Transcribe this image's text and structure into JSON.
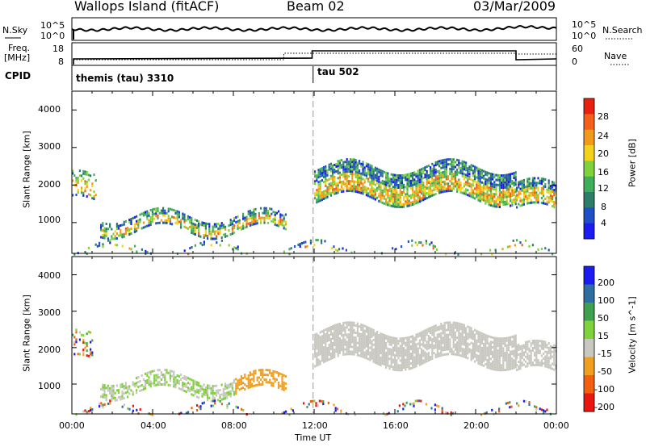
{
  "header": {
    "station": "Wallops Island (fitACF)",
    "beam": "Beam 02",
    "date": "03/Mar/2009"
  },
  "side_labels": {
    "nsky": "N.Sky",
    "freq_line1": "Freq.",
    "freq_line2": "[MHz]",
    "cpid": "CPID",
    "nsearch": "N.Search",
    "nave": "Nave"
  },
  "noise_panel": {
    "left_ticks": [
      "10^5",
      "10^0"
    ],
    "right_ticks": [
      "10^5",
      "10^0"
    ]
  },
  "freq_panel": {
    "left_ticks": [
      "18",
      "8"
    ],
    "right_ticks": [
      "60",
      "0"
    ]
  },
  "cpid_panel": {
    "segments": [
      {
        "label": "themis (tau) 3310",
        "start_hour": 0
      },
      {
        "label": "tau 502",
        "start_hour": 11.95
      }
    ]
  },
  "colors": {
    "power": [
      "#1c1cf0",
      "#1f50c8",
      "#2e7d6a",
      "#3fae5a",
      "#7fd23c",
      "#f2d21c",
      "#f29a1a",
      "#f2601a",
      "#e82010"
    ],
    "velocity": [
      "#e81810",
      "#f06010",
      "#f0a020",
      "#c8c8c0",
      "#7fd23c",
      "#3fa050",
      "#2e6ea0",
      "#1c1cf0"
    ]
  },
  "chart_data": [
    {
      "type": "heatmap",
      "name": "power",
      "title": "",
      "xlabel": "",
      "ylabel": "Slant Range [km]",
      "x_range_hours": [
        0,
        24
      ],
      "ylim": [
        180,
        4500
      ],
      "y_ticks": [
        "1000",
        "2000",
        "3000",
        "4000"
      ],
      "colorbar": {
        "label": "Power [dB]",
        "ticks": [
          "4",
          "8",
          "12",
          "16",
          "20",
          "24",
          "28"
        ],
        "range": [
          0,
          30
        ]
      },
      "regions": [
        {
          "t0": 0.0,
          "t1": 1.2,
          "r0": 1500,
          "r1": 2200,
          "density": 0.35
        },
        {
          "t0": 1.4,
          "t1": 10.6,
          "r0": 800,
          "r1": 1200,
          "density": 0.6
        },
        {
          "t0": 12.0,
          "t1": 22.0,
          "r0": 1600,
          "r1": 2500,
          "density": 0.8
        },
        {
          "t0": 22.0,
          "t1": 24.0,
          "r0": 1300,
          "r1": 2000,
          "density": 0.7
        },
        {
          "t0": 0.0,
          "t1": 24.0,
          "r0": 180,
          "r1": 350,
          "density": 0.25
        }
      ]
    },
    {
      "type": "heatmap",
      "name": "velocity",
      "title": "",
      "xlabel": "Time UT",
      "ylabel": "Slant Range [km]",
      "x_range_hours": [
        0,
        24
      ],
      "ylim": [
        180,
        4500
      ],
      "y_ticks": [
        "1000",
        "2000",
        "3000",
        "4000"
      ],
      "x_ticks": [
        "00:00",
        "04:00",
        "08:00",
        "12:00",
        "16:00",
        "20:00",
        "00:00"
      ],
      "colorbar": {
        "label": "Velocity [m s^-1]",
        "ticks": [
          "-200",
          "-100",
          "-50",
          "-15",
          "15",
          "50",
          "100",
          "200"
        ]
      },
      "regions": [
        {
          "t0": 0.0,
          "t1": 1.0,
          "r0": 1600,
          "r1": 2300,
          "density": 0.3
        },
        {
          "t0": 1.4,
          "t1": 10.6,
          "r0": 800,
          "r1": 1200,
          "density": 0.6
        },
        {
          "t0": 12.0,
          "t1": 22.0,
          "r0": 1600,
          "r1": 2500,
          "density": 0.85
        },
        {
          "t0": 22.0,
          "t1": 24.0,
          "r0": 1300,
          "r1": 2000,
          "density": 0.7
        },
        {
          "t0": 0.0,
          "t1": 24.0,
          "r0": 180,
          "r1": 350,
          "density": 0.25
        }
      ]
    }
  ]
}
